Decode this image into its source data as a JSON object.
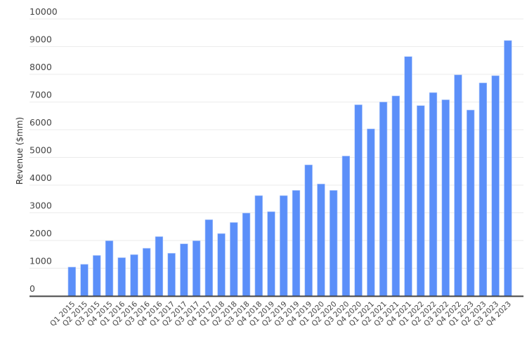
{
  "chart_data": {
    "type": "bar",
    "title": "",
    "xlabel": "",
    "ylabel": "Revenue ($mm)",
    "ylim": [
      0,
      10000
    ],
    "yticks": [
      0,
      1000,
      2000,
      3000,
      4000,
      5000,
      6000,
      7000,
      8000,
      9000,
      10000
    ],
    "grid": true,
    "bar_color": "#5B8FF9",
    "categories": [
      "Q1 2015",
      "Q2 2015",
      "Q3 2015",
      "Q4 2015",
      "Q1 2016",
      "Q2 2016",
      "Q3 2016",
      "Q4 2016",
      "Q1 2017",
      "Q2 2017",
      "Q3 2017",
      "Q4 2017",
      "Q1 2018",
      "Q2 2018",
      "Q3 2018",
      "Q4 2018",
      "Q1 2019",
      "Q2 2019",
      "Q3 2019",
      "Q4 2019",
      "Q1 2020",
      "Q2 2020",
      "Q3 2020",
      "Q4 2020",
      "Q1 2021",
      "Q2 2021",
      "Q3 2021",
      "Q4 2021",
      "Q1 2022",
      "Q2 2022",
      "Q3 2022",
      "Q4 2022",
      "Q1 2023",
      "Q2 2023",
      "Q3 2023",
      "Q4 2023"
    ],
    "values": [
      1040,
      1140,
      1460,
      1990,
      1380,
      1490,
      1720,
      2140,
      1540,
      1880,
      1990,
      2750,
      2250,
      2650,
      2990,
      3620,
      3040,
      3620,
      3810,
      4730,
      4040,
      3810,
      5050,
      6900,
      6030,
      7000,
      7220,
      8640,
      6870,
      7340,
      7080,
      7980,
      6710,
      7690,
      7950,
      9220
    ]
  }
}
